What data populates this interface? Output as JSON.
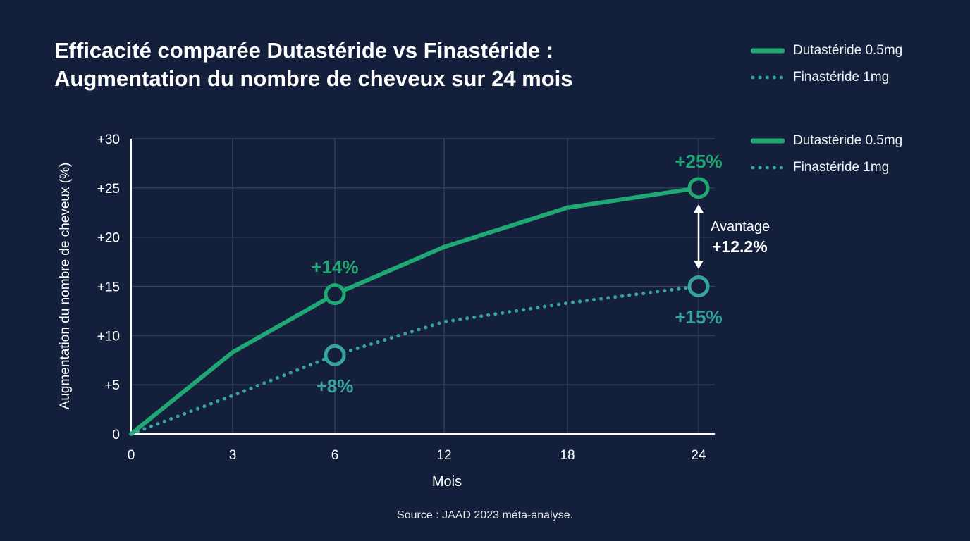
{
  "title_line1": "Efficacité comparée Dutastéride vs Finastéride :",
  "title_line2": "Augmentation du nombre de cheveux sur 24 mois",
  "source": "Source : JAAD 2023 méta-analyse.",
  "legend_top": [
    "Dutastéride 0.5mg",
    "Finastéride 1mg"
  ],
  "legend_side": [
    "Dutastéride 0.5mg",
    "Finastéride 1mg"
  ],
  "colors": {
    "background": "#14203b",
    "dutasteride": "#1fa874",
    "finasteride": "#36a3a0",
    "grid": "#3a4660"
  },
  "chart_data": {
    "type": "line",
    "title": "Efficacité comparée Dutastéride vs Finastéride : Augmentation du nombre de cheveux sur 24 mois",
    "xlabel": "Mois",
    "ylabel": "Augmentation du nombre de cheveux (%)",
    "x": [
      0,
      3,
      6,
      12,
      18,
      24
    ],
    "x_tick_labels": [
      "0",
      "3",
      "6",
      "12",
      "18",
      "24"
    ],
    "y_tick_labels": [
      "0",
      "+5",
      "+10",
      "+15",
      "+20",
      "+25",
      "+30"
    ],
    "ylim": [
      0,
      30
    ],
    "grid": true,
    "legend_placement": "top-right",
    "series": [
      {
        "name": "Dutastéride 0.5mg",
        "style": "solid",
        "values": [
          0,
          8.3,
          14.2,
          19.0,
          23.0,
          25.0
        ]
      },
      {
        "name": "Finastéride 1mg",
        "style": "dotted",
        "values": [
          0,
          3.9,
          8.0,
          11.4,
          13.3,
          15.0
        ]
      }
    ],
    "annotations": {
      "dut_6": "+14%",
      "fin_6": "+8%",
      "dut_24": "+25%",
      "fin_24": "+15%",
      "advantage_label": "Avantage",
      "advantage_value": "+12.2%"
    }
  }
}
